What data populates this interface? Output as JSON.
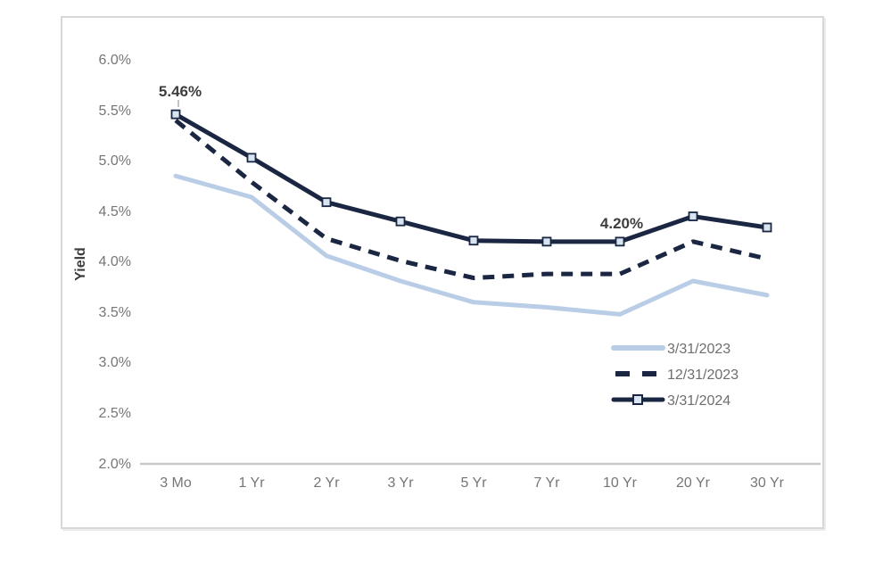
{
  "figure": {
    "border_color": "#d7d7d7",
    "background": "#ffffff"
  },
  "chart_data": {
    "type": "line",
    "title": "",
    "xlabel": "",
    "ylabel": "Yield",
    "ylim": [
      2.0,
      6.0
    ],
    "grid": false,
    "legend_position": "inside-right",
    "categories": [
      "3 Mo",
      "1 Yr",
      "2 Yr",
      "3 Yr",
      "5 Yr",
      "7 Yr",
      "10 Yr",
      "20 Yr",
      "30 Yr"
    ],
    "y_ticks": [
      "6.0%",
      "5.5%",
      "5.0%",
      "4.5%",
      "4.0%",
      "3.5%",
      "3.0%",
      "2.5%",
      "2.0%"
    ],
    "axis_line_color": "#c8c8c8",
    "tick_label_color": "#767676",
    "annotation_color": "#3d3d3d",
    "series": [
      {
        "name": "3/31/2023",
        "style": "solid",
        "color": "#b9cde6",
        "width": 5,
        "marker": false,
        "values": [
          4.85,
          4.64,
          4.06,
          3.81,
          3.6,
          3.55,
          3.48,
          3.81,
          3.67
        ]
      },
      {
        "name": "12/31/2023",
        "style": "dashed",
        "color": "#1b2742",
        "width": 5,
        "marker": false,
        "values": [
          5.4,
          4.79,
          4.23,
          4.01,
          3.84,
          3.88,
          3.88,
          4.2,
          4.03
        ]
      },
      {
        "name": "3/31/2024",
        "style": "solid",
        "color": "#1b2742",
        "width": 5,
        "marker": true,
        "marker_fill": "#d9e4f1",
        "values": [
          5.46,
          5.03,
          4.59,
          4.4,
          4.21,
          4.2,
          4.2,
          4.45,
          4.34
        ]
      }
    ],
    "annotations": [
      {
        "text": "5.46%",
        "series": "3/31/2024",
        "category": "3 Mo"
      },
      {
        "text": "4.20%",
        "series": "3/31/2024",
        "category": "10 Yr"
      }
    ]
  }
}
